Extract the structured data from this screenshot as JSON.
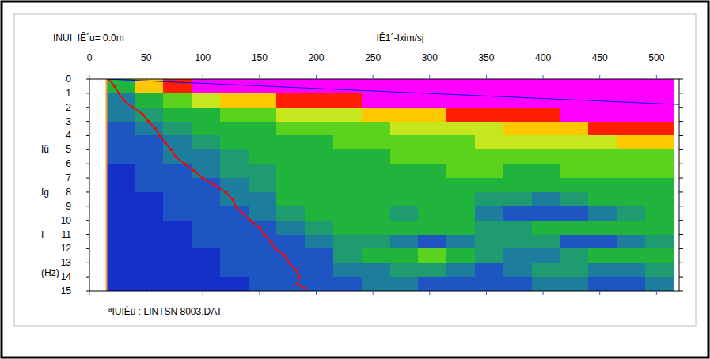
{
  "chart_data": {
    "type": "heatmap",
    "x_label": "IÊ1´-Ixim/sj",
    "y_label": [
      "Iü",
      "Ig",
      "I",
      "(Hz)"
    ],
    "annotations": [
      "INUI_IÊ´u= 0.0m",
      "ªIUIÈü : LINTSN 8003.DAT"
    ],
    "xlim": [
      0,
      520
    ],
    "xticks": [
      0,
      50,
      100,
      150,
      200,
      250,
      300,
      350,
      400,
      450,
      500
    ],
    "ylim": [
      0,
      15
    ],
    "yticks": [
      0,
      1,
      2,
      3,
      4,
      5,
      6,
      7,
      8,
      9,
      10,
      11,
      12,
      13,
      14,
      15
    ],
    "zlim": [
      0,
      9
    ],
    "x_edges": [
      15,
      40,
      65,
      90,
      115,
      140,
      165,
      190,
      215,
      240,
      265,
      290,
      315,
      340,
      365,
      390,
      415,
      440,
      465,
      490,
      515
    ],
    "y_edges": [
      0,
      1,
      2,
      3,
      4,
      5,
      6,
      7,
      8,
      9,
      10,
      11,
      12,
      13,
      14,
      15
    ],
    "cells": [
      [
        4,
        7,
        8,
        9,
        9,
        9,
        9,
        9,
        9,
        9,
        9,
        9,
        9,
        9,
        9,
        9,
        9,
        9,
        9,
        9
      ],
      [
        2,
        4,
        5,
        6,
        7,
        7,
        8,
        8,
        8,
        9,
        9,
        9,
        9,
        9,
        9,
        9,
        9,
        9,
        9,
        9
      ],
      [
        2,
        3,
        4,
        4,
        5,
        5,
        6,
        6,
        6,
        7,
        7,
        7,
        8,
        8,
        8,
        8,
        9,
        9,
        9,
        9
      ],
      [
        1,
        2,
        3,
        4,
        4,
        4,
        5,
        5,
        5,
        5,
        6,
        6,
        6,
        6,
        7,
        7,
        7,
        8,
        8,
        8
      ],
      [
        1,
        1,
        2,
        3,
        4,
        4,
        4,
        4,
        5,
        5,
        5,
        5,
        5,
        6,
        6,
        6,
        6,
        6,
        7,
        7
      ],
      [
        1,
        1,
        2,
        2,
        3,
        4,
        4,
        4,
        4,
        4,
        5,
        5,
        5,
        5,
        5,
        5,
        5,
        5,
        5,
        5
      ],
      [
        0,
        1,
        1,
        2,
        3,
        3,
        4,
        4,
        4,
        4,
        4,
        4,
        5,
        5,
        4,
        4,
        5,
        5,
        5,
        5
      ],
      [
        0,
        1,
        1,
        1,
        2,
        3,
        4,
        4,
        4,
        4,
        4,
        4,
        4,
        4,
        4,
        4,
        4,
        4,
        4,
        4
      ],
      [
        0,
        0,
        1,
        1,
        2,
        2,
        4,
        4,
        4,
        4,
        4,
        4,
        4,
        3,
        3,
        2,
        3,
        4,
        4,
        4
      ],
      [
        0,
        0,
        1,
        1,
        1,
        2,
        3,
        4,
        4,
        4,
        3,
        4,
        4,
        2,
        1,
        1,
        1,
        2,
        3,
        4
      ],
      [
        0,
        0,
        0,
        1,
        1,
        1,
        2,
        3,
        4,
        4,
        4,
        4,
        4,
        3,
        3,
        4,
        4,
        4,
        4,
        4
      ],
      [
        0,
        0,
        0,
        1,
        1,
        1,
        1,
        2,
        3,
        3,
        2,
        1,
        2,
        3,
        3,
        3,
        1,
        1,
        2,
        3
      ],
      [
        0,
        0,
        0,
        0,
        1,
        1,
        1,
        1,
        3,
        4,
        4,
        5,
        4,
        3,
        2,
        2,
        3,
        4,
        4,
        4
      ],
      [
        0,
        0,
        0,
        0,
        1,
        1,
        1,
        1,
        2,
        2,
        3,
        3,
        2,
        1,
        2,
        3,
        3,
        2,
        2,
        3
      ],
      [
        0,
        0,
        0,
        0,
        0,
        1,
        1,
        1,
        1,
        2,
        2,
        1,
        1,
        1,
        1,
        2,
        2,
        1,
        1,
        2
      ]
    ],
    "series": [
      {
        "type": "line",
        "color": "#ff0000",
        "marker": "dot",
        "x": [
          17,
          22,
          26,
          30,
          38,
          47,
          52,
          58,
          62,
          67,
          72,
          76,
          84,
          92,
          100,
          110,
          120,
          126,
          129,
          135,
          142,
          150,
          154,
          160,
          164,
          172,
          176,
          182,
          185,
          183,
          190
        ],
        "values": [
          0,
          0.5,
          1,
          1.5,
          2,
          2.5,
          3,
          3.5,
          4,
          4.5,
          5,
          5.5,
          6,
          6.5,
          7,
          7.5,
          8,
          8.5,
          9,
          9.5,
          10,
          10.5,
          11,
          11.5,
          12,
          12.5,
          13,
          13.5,
          14,
          14.5,
          14.8
        ]
      },
      {
        "type": "line",
        "color": "#0000ff",
        "marker": "none",
        "x": [
          15,
          520
        ],
        "values": [
          0,
          1.8
        ]
      }
    ]
  }
}
